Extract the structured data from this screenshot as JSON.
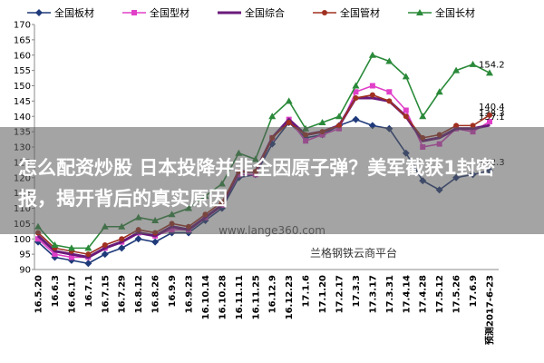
{
  "chart_data": {
    "type": "line",
    "categories": [
      "16.5.20",
      "16.6.3",
      "16.6.17",
      "16.7.1",
      "16.7.15",
      "16.7.29",
      "16.8.12",
      "16.8.26",
      "16.9.9",
      "16.9.23",
      "16.10.14",
      "16.10.28",
      "16.11.11",
      "16.11.25",
      "16.12.9",
      "16.12.23",
      "17.1.6",
      "17.1.20",
      "17.2.17",
      "17.3.3",
      "17.3.17",
      "17.3.31",
      "17.4.14",
      "17.4.28",
      "17.5.12",
      "17.5.26",
      "17.6.9",
      "预测2017-6-23"
    ],
    "series": [
      {
        "name": "全国板材",
        "color": "#1f3a7a",
        "marker": "diamond",
        "values": [
          99,
          94,
          93,
          92,
          95,
          97,
          100,
          99,
          102,
          102,
          106,
          110,
          120,
          121,
          131,
          138,
          133,
          134,
          137,
          139,
          137,
          136,
          128,
          119,
          116,
          120,
          121,
          122.3
        ],
        "value_labels": [
          null,
          null,
          null,
          null,
          null,
          null,
          null,
          null,
          null,
          null,
          null,
          null,
          null,
          null,
          null,
          null,
          null,
          null,
          null,
          null,
          null,
          null,
          null,
          null,
          null,
          null,
          null,
          "122.3"
        ]
      },
      {
        "name": "全国型材",
        "color": "#e040c8",
        "marker": "square",
        "values": [
          100,
          95,
          94,
          94,
          97,
          99,
          102,
          101,
          103,
          103,
          107,
          111,
          121,
          121,
          133,
          139,
          132,
          134,
          136,
          148,
          150,
          148,
          142,
          130,
          131,
          136,
          135,
          138.3
        ],
        "value_labels": [
          null,
          null,
          null,
          null,
          null,
          null,
          null,
          null,
          null,
          null,
          null,
          null,
          null,
          null,
          null,
          null,
          null,
          null,
          null,
          null,
          null,
          null,
          null,
          null,
          null,
          null,
          null,
          "138.3"
        ]
      },
      {
        "name": "全国综合",
        "color": "#6a1a7a",
        "marker": "none",
        "values": [
          101,
          96,
          95,
          94,
          97,
          99,
          102,
          101,
          104,
          103,
          107,
          111,
          122,
          122,
          133,
          139,
          134,
          135,
          137,
          146,
          146,
          145,
          140,
          132,
          133,
          136,
          136,
          137.1
        ],
        "value_labels": [
          null,
          null,
          null,
          null,
          null,
          null,
          null,
          null,
          null,
          null,
          null,
          null,
          null,
          null,
          null,
          null,
          null,
          null,
          null,
          null,
          null,
          null,
          null,
          null,
          null,
          null,
          null,
          "137.1"
        ]
      },
      {
        "name": "全国管材",
        "color": "#a03020",
        "marker": "circle",
        "values": [
          102,
          97,
          96,
          95,
          98,
          100,
          103,
          102,
          105,
          104,
          108,
          112,
          122,
          122,
          133,
          138,
          134,
          135,
          137,
          146,
          147,
          145,
          140,
          133,
          134,
          137,
          137,
          140.4
        ],
        "value_labels": [
          null,
          null,
          null,
          null,
          null,
          null,
          null,
          null,
          null,
          null,
          null,
          null,
          null,
          null,
          null,
          null,
          null,
          null,
          null,
          null,
          null,
          null,
          null,
          null,
          null,
          null,
          null,
          "140.4"
        ]
      },
      {
        "name": "全国长材",
        "color": "#2a8a3a",
        "marker": "triangle",
        "values": [
          104,
          98,
          97,
          97,
          104,
          104,
          107,
          106,
          108,
          110,
          114,
          118,
          128,
          126,
          140,
          145,
          136,
          138,
          140,
          150,
          160,
          158,
          153,
          140,
          148,
          155,
          157,
          154.2
        ],
        "value_labels": [
          null,
          null,
          null,
          null,
          null,
          null,
          null,
          null,
          null,
          null,
          null,
          null,
          null,
          null,
          null,
          null,
          null,
          null,
          null,
          null,
          null,
          null,
          null,
          null,
          null,
          null,
          null,
          "154.2"
        ]
      }
    ],
    "ylim": [
      90,
      170
    ],
    "yticks": [
      90,
      95,
      100,
      105,
      110,
      115,
      120,
      125,
      130,
      135,
      140,
      145,
      150,
      155,
      160,
      165,
      170
    ],
    "grid": false,
    "annotations": [
      "www.lange360.com",
      "兰格钢铁云商平台"
    ]
  },
  "overlay": {
    "text": "怎么配资炒股 日本投降并非全因原子弹？美军截获1封密报，揭开背后的真实原因"
  }
}
